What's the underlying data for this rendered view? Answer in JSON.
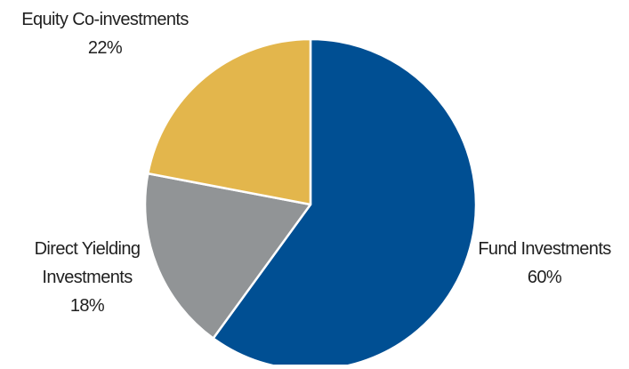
{
  "chart_data": {
    "type": "pie",
    "title": "",
    "slices": [
      {
        "label": "Fund Investments",
        "label_lines": [
          "Fund Investments"
        ],
        "value": 60,
        "value_text": "60%",
        "color": "#004f93"
      },
      {
        "label": "Direct Yielding Investments",
        "label_lines": [
          "Direct Yielding",
          "Investments"
        ],
        "value": 18,
        "value_text": "18%",
        "color": "#919496"
      },
      {
        "label": "Equity Co-investments",
        "label_lines": [
          "Equity Co-investments"
        ],
        "value": 22,
        "value_text": "22%",
        "color": "#e3b64c"
      }
    ],
    "start_angle": "12 o'clock",
    "direction": "clockwise",
    "legend": "none",
    "labels_outside": true
  }
}
